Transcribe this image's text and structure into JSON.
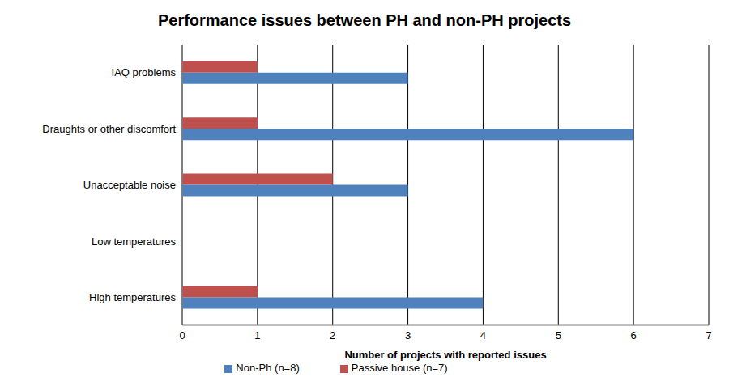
{
  "chart_data": {
    "type": "bar",
    "title": "Performance issues between PH and non-PH projects",
    "orientation": "horizontal",
    "categories": [
      "IAQ problems",
      "Draughts or other discomfort",
      "Unacceptable noise",
      "Low temperatures",
      "High temperatures"
    ],
    "series": [
      {
        "name": "Passive house (n=7)",
        "color": "#c0504d",
        "values": [
          1,
          1,
          2,
          0,
          1
        ]
      },
      {
        "name": "Non-Ph (n=8)",
        "color": "#4f81bd",
        "values": [
          3,
          6,
          3,
          0,
          4
        ]
      }
    ],
    "xlabel": "Number of projects with reported issues",
    "xlim": [
      0,
      7
    ],
    "xticks": [
      0,
      1,
      2,
      3,
      4,
      5,
      6,
      7
    ],
    "grid": true,
    "legend": "bottom"
  }
}
